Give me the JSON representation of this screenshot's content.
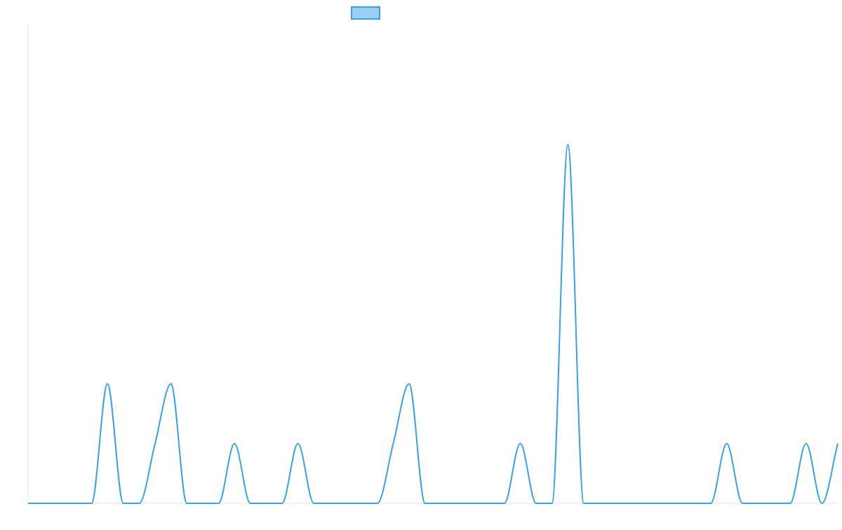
{
  "chart_data": {
    "type": "line",
    "title": "",
    "xlabel": "",
    "ylabel": "",
    "x": [
      0,
      1,
      2,
      3,
      4,
      5,
      6,
      7,
      8,
      9,
      10,
      11,
      12,
      13,
      14,
      15,
      16,
      17,
      18,
      19,
      20,
      21,
      22,
      23,
      24,
      25,
      26,
      27,
      28,
      29,
      30,
      31,
      32,
      33,
      34,
      35,
      36,
      37,
      38,
      39,
      40,
      41,
      42,
      43,
      44,
      45,
      46,
      47,
      48,
      49,
      50,
      51
    ],
    "series": [
      {
        "name": "",
        "values": [
          0,
          0,
          0,
          0,
          0,
          2,
          0,
          0,
          1,
          2,
          0,
          0,
          0,
          1,
          0,
          0,
          0,
          1,
          0,
          0,
          0,
          0,
          0,
          1,
          2,
          0,
          0,
          0,
          0,
          0,
          0,
          1,
          0,
          0,
          6,
          0,
          0,
          0,
          0,
          0,
          0,
          0,
          0,
          0,
          1,
          0,
          0,
          0,
          0,
          1,
          0,
          1
        ]
      }
    ],
    "ylim": [
      0,
      8
    ],
    "grid": false,
    "show_y_axis_line": true,
    "legend": {
      "position": "top",
      "show_label": false
    },
    "colors": {
      "line": "#36a2eb",
      "legend_fill": "#9ad0f5",
      "axis": "#e5e5e5"
    }
  }
}
